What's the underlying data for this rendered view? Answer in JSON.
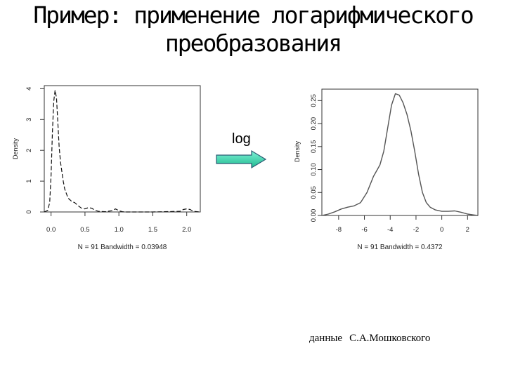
{
  "slide": {
    "title_line1": "Пример: применение логарифмического",
    "title_line2": "преобразования",
    "arrow_label": "log",
    "credit_prefix": "данные",
    "credit_author": "С.А.Мошковского"
  },
  "chart_data": [
    {
      "type": "line",
      "ylabel": "Density",
      "xlabel": "",
      "note": "N = 91   Bandwidth = 0.03948",
      "xlim": [
        -0.1,
        2.2
      ],
      "ylim": [
        0,
        4.1
      ],
      "xticks": [
        "0.0",
        "0.5",
        "1.0",
        "1.5",
        "2.0"
      ],
      "xtick_values": [
        0,
        0.5,
        1.0,
        1.5,
        2.0
      ],
      "yticks": [
        "0",
        "1",
        "2",
        "3",
        "4"
      ],
      "ytick_values": [
        0,
        1,
        2,
        3,
        4
      ],
      "line_style": "dashed",
      "series": [
        {
          "x": [
            -0.1,
            -0.05,
            -0.02,
            0.0,
            0.02,
            0.04,
            0.06,
            0.08,
            0.1,
            0.12,
            0.14,
            0.16,
            0.18,
            0.2,
            0.25,
            0.3,
            0.35,
            0.4,
            0.45,
            0.5,
            0.55,
            0.6,
            0.65,
            0.7,
            0.8,
            0.9,
            0.95,
            1.0,
            1.05,
            1.1,
            1.2,
            1.5,
            1.9,
            1.95,
            2.0,
            2.05,
            2.1,
            2.2
          ],
          "y": [
            0.0,
            0.05,
            0.3,
            1.2,
            2.6,
            3.6,
            3.95,
            3.7,
            2.9,
            2.1,
            1.6,
            1.3,
            1.0,
            0.75,
            0.45,
            0.35,
            0.3,
            0.2,
            0.12,
            0.1,
            0.14,
            0.12,
            0.05,
            0.02,
            0.01,
            0.04,
            0.1,
            0.04,
            0.01,
            0.0,
            0.0,
            0.0,
            0.02,
            0.08,
            0.1,
            0.08,
            0.02,
            0.0
          ]
        }
      ]
    },
    {
      "type": "line",
      "ylabel": "Density",
      "xlabel": "",
      "note": "N = 91   Bandwidth = 0.4372",
      "xlim": [
        -9.3,
        2.8
      ],
      "ylim": [
        0,
        0.275
      ],
      "xticks": [
        "-8",
        "-6",
        "-4",
        "-2",
        "0",
        "2"
      ],
      "xtick_values": [
        -8,
        -6,
        -4,
        -2,
        0,
        2
      ],
      "yticks": [
        "0.00",
        "0.05",
        "0.10",
        "0.15",
        "0.20",
        "0.25"
      ],
      "ytick_values": [
        0,
        0.05,
        0.1,
        0.15,
        0.2,
        0.25
      ],
      "line_style": "solid",
      "series": [
        {
          "x": [
            -9.3,
            -8.8,
            -8.3,
            -7.8,
            -7.3,
            -6.8,
            -6.3,
            -5.8,
            -5.3,
            -4.8,
            -4.5,
            -4.2,
            -3.9,
            -3.6,
            -3.3,
            -3.0,
            -2.7,
            -2.4,
            -2.1,
            -1.8,
            -1.5,
            -1.2,
            -0.9,
            -0.5,
            0.0,
            0.5,
            1.0,
            1.5,
            2.0,
            2.5,
            2.8
          ],
          "y": [
            0.0,
            0.003,
            0.008,
            0.014,
            0.018,
            0.021,
            0.028,
            0.05,
            0.085,
            0.11,
            0.14,
            0.19,
            0.24,
            0.265,
            0.262,
            0.245,
            0.22,
            0.185,
            0.14,
            0.09,
            0.05,
            0.028,
            0.018,
            0.012,
            0.009,
            0.009,
            0.01,
            0.007,
            0.003,
            0.001,
            0.0
          ]
        }
      ]
    }
  ]
}
